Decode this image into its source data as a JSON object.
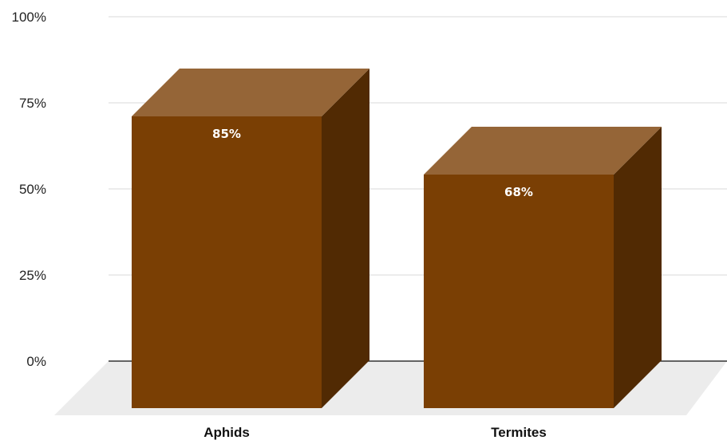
{
  "chart_data": {
    "type": "bar",
    "categories": [
      "Aphids",
      "Termites"
    ],
    "values": [
      85,
      68
    ],
    "data_labels": [
      "85%",
      "68%"
    ],
    "y_ticks": [
      0,
      25,
      50,
      75,
      100
    ],
    "y_tick_labels": [
      "0%",
      "25%",
      "50%",
      "75%",
      "100%"
    ],
    "ylim": [
      0,
      100
    ],
    "grid": true,
    "legend": "none",
    "three_d": true,
    "colors": {
      "bar_front": "#7a3f04",
      "bar_top": "#956537",
      "bar_side": "#512a03",
      "floor": "#ececec",
      "grid": "#d9d9d9",
      "axis": "#333333"
    }
  }
}
